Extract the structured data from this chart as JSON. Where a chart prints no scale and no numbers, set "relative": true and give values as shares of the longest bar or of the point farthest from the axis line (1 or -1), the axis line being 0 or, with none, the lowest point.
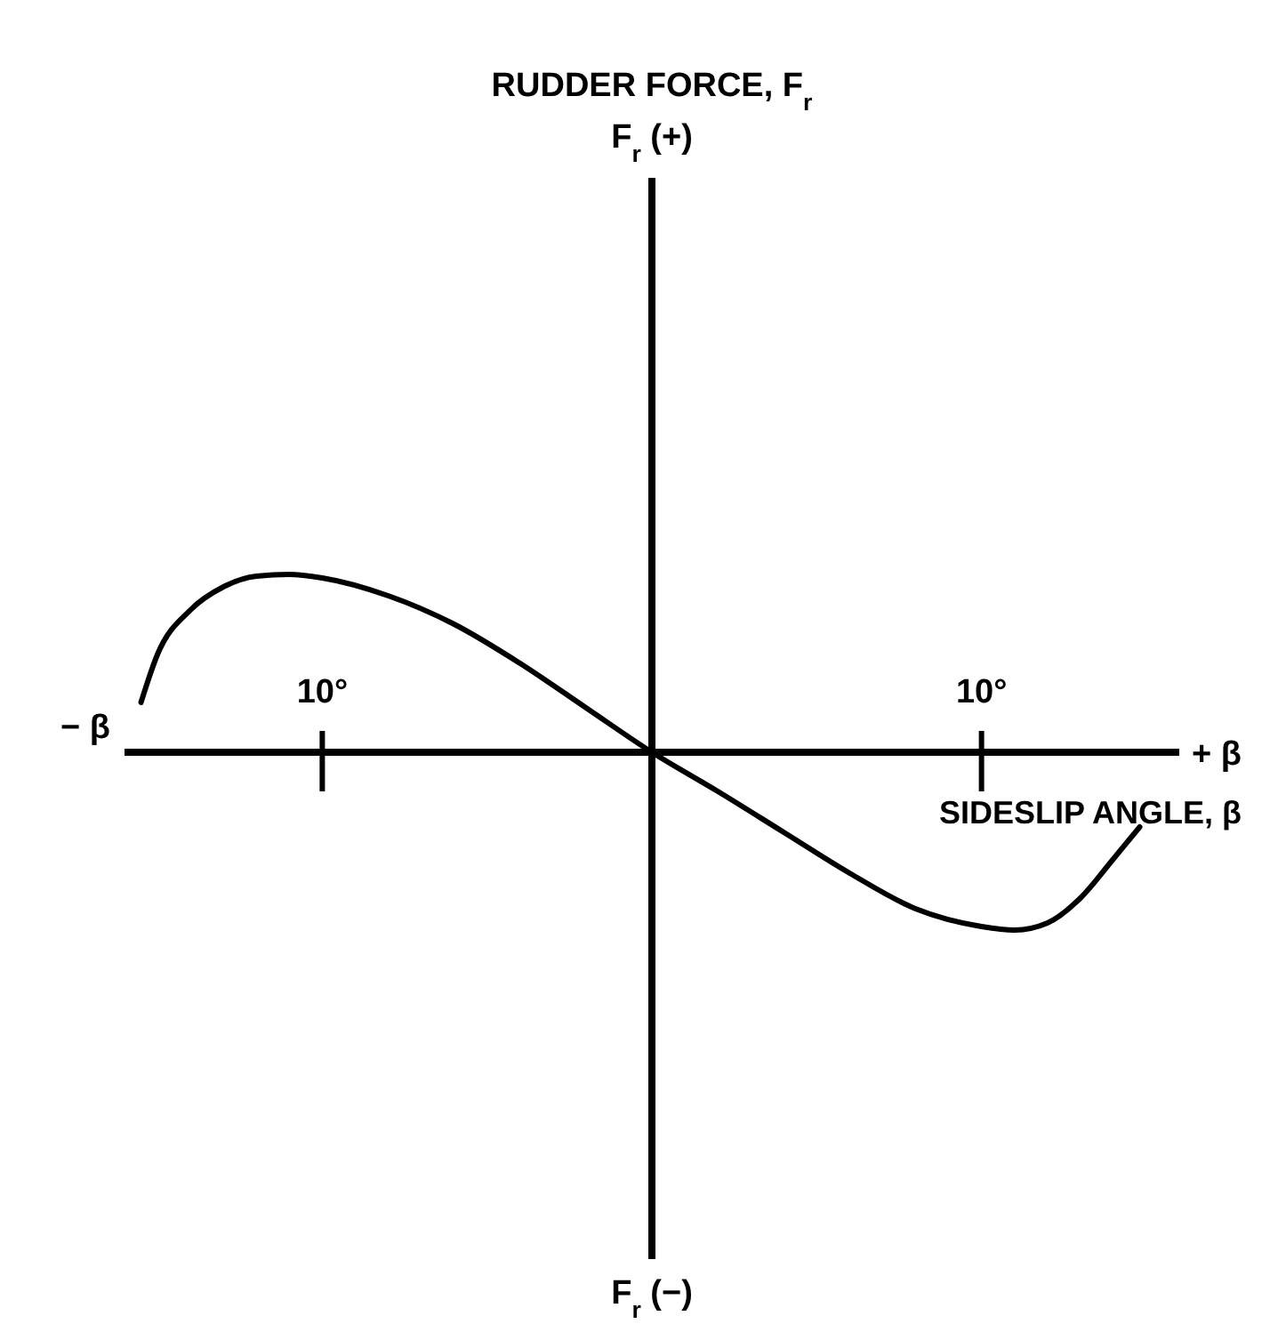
{
  "chart_data": {
    "type": "line",
    "relative": true,
    "xlabel": "SIDESLIP ANGLE, β",
    "xlim": [
      -16,
      16
    ],
    "xticks": [
      {
        "value": -10,
        "label": "10°"
      },
      {
        "value": 10,
        "label": "10°"
      }
    ],
    "annotations": [
      "RUDDER FORCE, F$_{r}$",
      "F$_{r}$ (+)",
      "F$_{r}$ (−)",
      "− β",
      "+ β"
    ],
    "x": [
      -15.5,
      -15,
      -14,
      -13,
      -12,
      -11,
      -10,
      -8,
      -6,
      -4,
      -2,
      0,
      2,
      4,
      6,
      8,
      10,
      11,
      12,
      13,
      14,
      14.8
    ],
    "series": [
      {
        "color": "#000000",
        "values": [
          0.28,
          0.55,
          0.8,
          0.93,
          0.99,
          1.0,
          0.98,
          0.88,
          0.72,
          0.5,
          0.25,
          0,
          -0.22,
          -0.45,
          -0.68,
          -0.88,
          -0.98,
          -1.0,
          -0.96,
          -0.82,
          -0.6,
          -0.42
        ]
      }
    ],
    "line_style": "solid"
  }
}
